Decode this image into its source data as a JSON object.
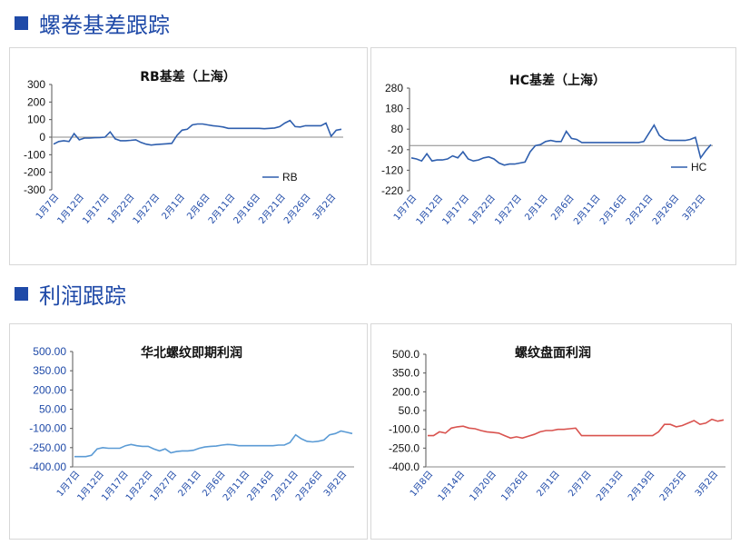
{
  "sections": [
    {
      "title": "螺卷基差跟踪"
    },
    {
      "title": "利润跟踪"
    }
  ],
  "chart_data": [
    {
      "type": "line",
      "title": "RB基差（上海）",
      "color": "#2f5fae",
      "legend": "RB",
      "legend_position": "bottom-right",
      "ylim": [
        -300,
        300
      ],
      "yticks": [
        "300",
        "200",
        "100",
        "0",
        "-100",
        "-200",
        "-300"
      ],
      "ytick_values": [
        300,
        200,
        100,
        0,
        -100,
        -200,
        -300
      ],
      "x_labels": [
        "1月7日",
        "1月12日",
        "1月17日",
        "1月22日",
        "1月27日",
        "2月1日",
        "2月6日",
        "2月11日",
        "2月16日",
        "2月21日",
        "2月26日",
        "3月2日"
      ],
      "series": [
        {
          "name": "RB",
          "values": [
            -40,
            -25,
            -20,
            -25,
            20,
            -15,
            -5,
            -5,
            -3,
            -2,
            0,
            30,
            -10,
            -20,
            -20,
            -18,
            -15,
            -30,
            -40,
            -45,
            -42,
            -40,
            -38,
            -35,
            10,
            40,
            45,
            70,
            75,
            75,
            70,
            65,
            62,
            58,
            50,
            50,
            50,
            50,
            50,
            50,
            50,
            48,
            50,
            52,
            60,
            80,
            95,
            60,
            58,
            65,
            65,
            65,
            65,
            80,
            5,
            40,
            45
          ]
        }
      ]
    },
    {
      "type": "line",
      "title": "HC基差（上海）",
      "color": "#2f5fae",
      "legend": "HC",
      "legend_position": "bottom-right",
      "ylim": [
        -220,
        280
      ],
      "yticks": [
        "280",
        "180",
        "80",
        "-20",
        "-120",
        "-220"
      ],
      "ytick_values": [
        280,
        180,
        80,
        -20,
        -120,
        -220
      ],
      "x_labels": [
        "1月7日",
        "1月12日",
        "1月17日",
        "1月22日",
        "1月27日",
        "2月1日",
        "2月6日",
        "2月11日",
        "2月16日",
        "2月21日",
        "2月26日",
        "3月2日"
      ],
      "series": [
        {
          "name": "HC",
          "values": [
            -60,
            -65,
            -75,
            -40,
            -75,
            -70,
            -70,
            -65,
            -50,
            -60,
            -30,
            -65,
            -75,
            -70,
            -60,
            -55,
            -65,
            -85,
            -95,
            -90,
            -90,
            -85,
            -80,
            -30,
            0,
            5,
            20,
            25,
            20,
            20,
            70,
            35,
            30,
            15,
            15,
            15,
            15,
            15,
            15,
            15,
            15,
            15,
            15,
            15,
            15,
            20,
            60,
            100,
            50,
            30,
            25,
            25,
            25,
            25,
            30,
            40,
            -60,
            -25,
            5
          ]
        }
      ]
    },
    {
      "type": "line",
      "title": "华北螺纹即期利润",
      "color": "#5b9bd5",
      "ylim": [
        -400,
        500
      ],
      "yticks": [
        "500.00",
        "350.00",
        "200.00",
        "50.00",
        "-100.00",
        "-250.00",
        "-400.00"
      ],
      "ytick_values": [
        500,
        350,
        200,
        50,
        -100,
        -250,
        -400
      ],
      "x_labels": [
        "1月7日",
        "1月12日",
        "1月17日",
        "1月22日",
        "1月27日",
        "2月1日",
        "2月6日",
        "2月11日",
        "2月16日",
        "2月21日",
        "2月26日",
        "3月2日"
      ],
      "series": [
        {
          "name": "",
          "values": [
            -320,
            -320,
            -320,
            -310,
            -260,
            -250,
            -255,
            -255,
            -255,
            -235,
            -225,
            -235,
            -240,
            -240,
            -260,
            -275,
            -260,
            -290,
            -280,
            -275,
            -275,
            -270,
            -255,
            -245,
            -240,
            -238,
            -230,
            -225,
            -228,
            -235,
            -235,
            -235,
            -235,
            -235,
            -235,
            -235,
            -230,
            -230,
            -210,
            -150,
            -180,
            -200,
            -205,
            -200,
            -190,
            -150,
            -140,
            -120,
            -130,
            -140
          ]
        }
      ]
    },
    {
      "type": "line",
      "title": "螺纹盘面利润",
      "color": "#d9534f",
      "ylim": [
        -400,
        500
      ],
      "yticks": [
        "500.0",
        "350.0",
        "200.0",
        "50.0",
        "-100.0",
        "-250.0",
        "-400.0"
      ],
      "ytick_values": [
        500,
        350,
        200,
        50,
        -100,
        -250,
        -400
      ],
      "x_labels": [
        "1月8日",
        "1月14日",
        "1月20日",
        "1月26日",
        "2月1日",
        "2月7日",
        "2月13日",
        "2月19日",
        "2月25日",
        "3月2日"
      ],
      "series": [
        {
          "name": "",
          "values": [
            -150,
            -150,
            -120,
            -130,
            -90,
            -80,
            -75,
            -90,
            -95,
            -110,
            -120,
            -125,
            -130,
            -150,
            -170,
            -160,
            -170,
            -155,
            -140,
            -120,
            -110,
            -110,
            -100,
            -100,
            -95,
            -90,
            -150,
            -150,
            -150,
            -150,
            -150,
            -150,
            -150,
            -150,
            -150,
            -150,
            -150,
            -150,
            -150,
            -120,
            -60,
            -60,
            -80,
            -70,
            -50,
            -30,
            -60,
            -50,
            -20,
            -35,
            -25
          ]
        }
      ]
    }
  ]
}
